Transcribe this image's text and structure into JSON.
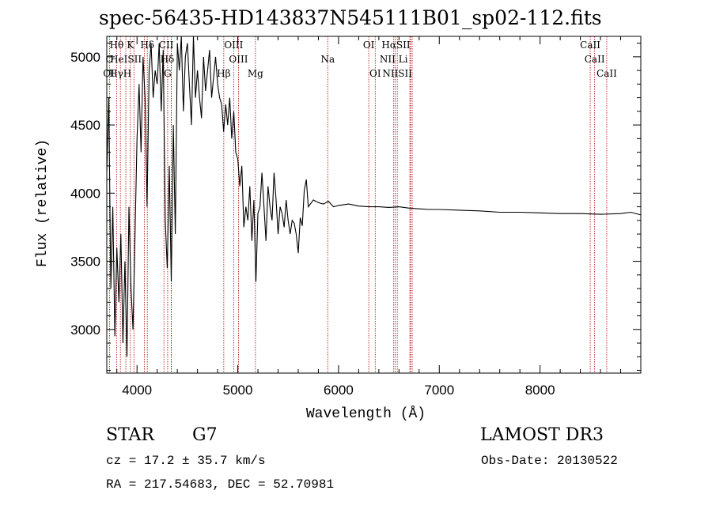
{
  "title": "spec-56435-HD143837N545111B01_sp02-112.fits",
  "info": {
    "class_label": "STAR",
    "subclass": "G7",
    "survey": "LAMOST DR3",
    "cz": "cz = 17.2 ± 35.7 km/s",
    "obs_date": "Obs-Date: 20130522",
    "coords": "RA = 217.54683, DEC =  52.70981"
  },
  "chart_data": {
    "type": "line",
    "title": "spec-56435-HD143837N545111B01_sp02-112.fits",
    "xlabel": "Wavelength (Å)",
    "ylabel": "Flux (relative)",
    "xlim": [
      3700,
      9000
    ],
    "ylim": [
      2680,
      5150
    ],
    "xticks": [
      4000,
      5000,
      6000,
      7000,
      8000
    ],
    "yticks": [
      3000,
      3500,
      4000,
      4500,
      5000
    ],
    "series": [
      {
        "name": "flux",
        "x": [
          3700,
          3720,
          3740,
          3760,
          3780,
          3800,
          3820,
          3840,
          3860,
          3880,
          3900,
          3920,
          3940,
          3960,
          3980,
          4000,
          4020,
          4040,
          4060,
          4080,
          4100,
          4120,
          4140,
          4160,
          4180,
          4200,
          4220,
          4240,
          4260,
          4280,
          4300,
          4320,
          4340,
          4360,
          4380,
          4400,
          4420,
          4440,
          4460,
          4480,
          4500,
          4520,
          4540,
          4560,
          4580,
          4600,
          4620,
          4640,
          4660,
          4680,
          4700,
          4720,
          4740,
          4760,
          4780,
          4800,
          4820,
          4840,
          4860,
          4880,
          4900,
          4920,
          4940,
          4960,
          4980,
          5000,
          5020,
          5040,
          5060,
          5080,
          5100,
          5120,
          5140,
          5160,
          5180,
          5200,
          5220,
          5240,
          5260,
          5280,
          5300,
          5320,
          5340,
          5360,
          5380,
          5400,
          5420,
          5440,
          5460,
          5480,
          5500,
          5520,
          5540,
          5560,
          5580,
          5600,
          5620,
          5640,
          5660,
          5680,
          5700,
          5750,
          5800,
          5850,
          5900,
          5950,
          6000,
          6100,
          6200,
          6300,
          6400,
          6500,
          6600,
          6700,
          6800,
          6900,
          7000,
          7200,
          7400,
          7600,
          7800,
          8000,
          8200,
          8400,
          8600,
          8800,
          8900,
          9000
        ],
        "y": [
          4150,
          4700,
          3300,
          3900,
          2950,
          3600,
          3200,
          3700,
          2900,
          3500,
          2800,
          3900,
          3300,
          3000,
          3700,
          4400,
          4800,
          4300,
          5000,
          4700,
          3900,
          4900,
          5100,
          4700,
          4900,
          4800,
          5100,
          4600,
          5050,
          3800,
          3450,
          4200,
          3350,
          4500,
          3700,
          5100,
          4900,
          5150,
          4600,
          5000,
          5100,
          4800,
          4500,
          5150,
          4700,
          4900,
          4700,
          4550,
          5000,
          4750,
          4900,
          5050,
          4700,
          4850,
          5000,
          4800,
          4700,
          4650,
          4450,
          4650,
          4500,
          4700,
          4400,
          4600,
          4300,
          4250,
          4050,
          4200,
          3750,
          3900,
          3800,
          4050,
          3650,
          3950,
          3350,
          3850,
          3900,
          4150,
          3900,
          3650,
          4050,
          3900,
          3800,
          4150,
          3950,
          3700,
          3900,
          3850,
          3750,
          3950,
          3800,
          3700,
          3800,
          3780,
          3700,
          3560,
          3820,
          3760,
          4020,
          4100,
          3900,
          3950,
          3930,
          3920,
          3940,
          3900,
          3910,
          3920,
          3905,
          3900,
          3900,
          3895,
          3900,
          3890,
          3885,
          3880,
          3880,
          3875,
          3870,
          3860,
          3860,
          3855,
          3850,
          3850,
          3845,
          3850,
          3860,
          3840
        ]
      }
    ],
    "lines": [
      {
        "name": "Hθ",
        "wave": 3797
      },
      {
        "name": "O",
        "wave": 3727
      },
      {
        "name": "K",
        "wave": 3934
      },
      {
        "name": "HeI",
        "wave": 3889
      },
      {
        "name": "Hγ",
        "wave": 3835
      },
      {
        "name": "H",
        "wave": 3969
      },
      {
        "name": "SII",
        "wave": 4072
      },
      {
        "name": "Hδ",
        "wave": 4102
      },
      {
        "name": "Hδ",
        "wave": 4340
      },
      {
        "name": "Gband",
        "wave": 4304
      },
      {
        "name": "Hγ",
        "wave": 4340
      },
      {
        "name": "CII",
        "wave": 4267
      },
      {
        "name": "OIII",
        "wave": 4959
      },
      {
        "name": "OIII",
        "wave": 5007
      },
      {
        "name": "Hβ",
        "wave": 4861
      },
      {
        "name": "Mg",
        "wave": 5175
      },
      {
        "name": "Na",
        "wave": 5893
      },
      {
        "name": "OI",
        "wave": 6300
      },
      {
        "name": "OI",
        "wave": 6364
      },
      {
        "name": "Hα",
        "wave": 6563
      },
      {
        "name": "NII",
        "wave": 6548
      },
      {
        "name": "NII",
        "wave": 6583
      },
      {
        "name": "SII",
        "wave": 6716
      },
      {
        "name": "SII",
        "wave": 6731
      },
      {
        "name": "Li",
        "wave": 6708
      },
      {
        "name": "CaII",
        "wave": 8498
      },
      {
        "name": "CaII",
        "wave": 8542
      },
      {
        "name": "CaII",
        "wave": 8662
      }
    ],
    "line_labels": [
      {
        "text": "Hθ",
        "wave": 3797,
        "row": 0
      },
      {
        "text": "K",
        "wave": 3934,
        "row": 0
      },
      {
        "text": "Hδ",
        "wave": 4102,
        "row": 0
      },
      {
        "text": "CII",
        "wave": 4290,
        "row": 0
      },
      {
        "text": "OIII",
        "wave": 4959,
        "row": 0
      },
      {
        "text": "OI",
        "wave": 6300,
        "row": 0
      },
      {
        "text": "HαSII",
        "wave": 6570,
        "row": 0
      },
      {
        "text": "CaII",
        "wave": 8498,
        "row": 0
      },
      {
        "text": "O",
        "wave": 3727,
        "row": 1
      },
      {
        "text": "HeISII",
        "wave": 3889,
        "row": 1
      },
      {
        "text": "Hδ",
        "wave": 4300,
        "row": 1
      },
      {
        "text": "OIII",
        "wave": 5007,
        "row": 1
      },
      {
        "text": "Na",
        "wave": 5893,
        "row": 1
      },
      {
        "text": "NII Li",
        "wave": 6548,
        "row": 1
      },
      {
        "text": "CaII",
        "wave": 8542,
        "row": 1
      },
      {
        "text": "OI",
        "wave": 3720,
        "row": 2
      },
      {
        "text": "HγH",
        "wave": 3835,
        "row": 2
      },
      {
        "text": "G",
        "wave": 4304,
        "row": 2
      },
      {
        "text": "Hβ",
        "wave": 4861,
        "row": 2
      },
      {
        "text": "Mg",
        "wave": 5175,
        "row": 2
      },
      {
        "text": "OI",
        "wave": 6364,
        "row": 2
      },
      {
        "text": "NIISII",
        "wave": 6583,
        "row": 2
      },
      {
        "text": "CaII",
        "wave": 8662,
        "row": 2
      }
    ]
  },
  "colors": {
    "spectrum": "#000000",
    "line_markers": "#b00000",
    "axes": "#000000"
  }
}
